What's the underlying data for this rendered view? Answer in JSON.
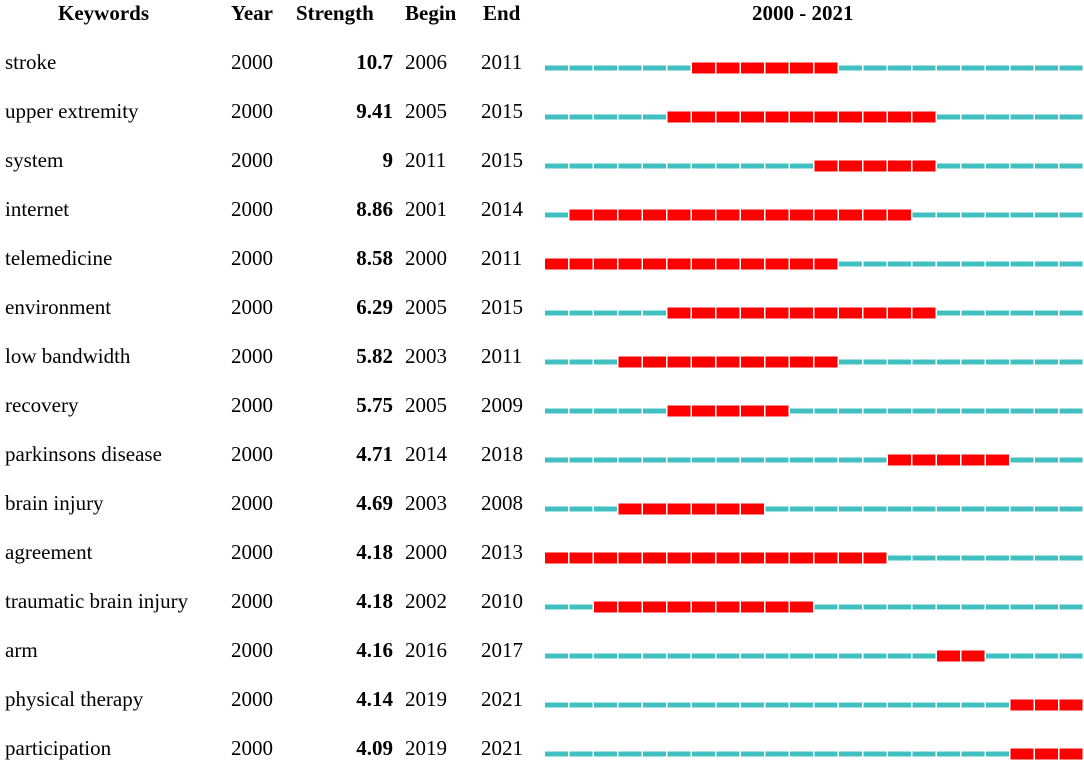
{
  "headers": {
    "keywords": "Keywords",
    "year": "Year",
    "strength": "Strength",
    "begin": "Begin",
    "end": "End",
    "range": "2000 - 2021"
  },
  "colors": {
    "burst": "#ff0000",
    "normal": "#40c0c0"
  },
  "chart_data": {
    "type": "table",
    "timeline_start": 2000,
    "timeline_end": 2021,
    "columns": [
      "Keywords",
      "Year",
      "Strength",
      "Begin",
      "End"
    ],
    "rows": [
      {
        "keyword": "stroke",
        "year": "2000",
        "strength": "10.7",
        "begin": "2006",
        "end": "2011"
      },
      {
        "keyword": "upper extremity",
        "year": "2000",
        "strength": "9.41",
        "begin": "2005",
        "end": "2015"
      },
      {
        "keyword": "system",
        "year": "2000",
        "strength": "9",
        "begin": "2011",
        "end": "2015"
      },
      {
        "keyword": "internet",
        "year": "2000",
        "strength": "8.86",
        "begin": "2001",
        "end": "2014"
      },
      {
        "keyword": "telemedicine",
        "year": "2000",
        "strength": "8.58",
        "begin": "2000",
        "end": "2011"
      },
      {
        "keyword": "environment",
        "year": "2000",
        "strength": "6.29",
        "begin": "2005",
        "end": "2015"
      },
      {
        "keyword": "low bandwidth",
        "year": "2000",
        "strength": "5.82",
        "begin": "2003",
        "end": "2011"
      },
      {
        "keyword": "recovery",
        "year": "2000",
        "strength": "5.75",
        "begin": "2005",
        "end": "2009"
      },
      {
        "keyword": "parkinsons disease",
        "year": "2000",
        "strength": "4.71",
        "begin": "2014",
        "end": "2018"
      },
      {
        "keyword": "brain injury",
        "year": "2000",
        "strength": "4.69",
        "begin": "2003",
        "end": "2008"
      },
      {
        "keyword": "agreement",
        "year": "2000",
        "strength": "4.18",
        "begin": "2000",
        "end": "2013"
      },
      {
        "keyword": "traumatic brain injury",
        "year": "2000",
        "strength": "4.18",
        "begin": "2002",
        "end": "2010"
      },
      {
        "keyword": "arm",
        "year": "2000",
        "strength": "4.16",
        "begin": "2016",
        "end": "2017"
      },
      {
        "keyword": "physical therapy",
        "year": "2000",
        "strength": "4.14",
        "begin": "2019",
        "end": "2021"
      },
      {
        "keyword": "participation",
        "year": "2000",
        "strength": "4.09",
        "begin": "2019",
        "end": "2021"
      }
    ]
  }
}
